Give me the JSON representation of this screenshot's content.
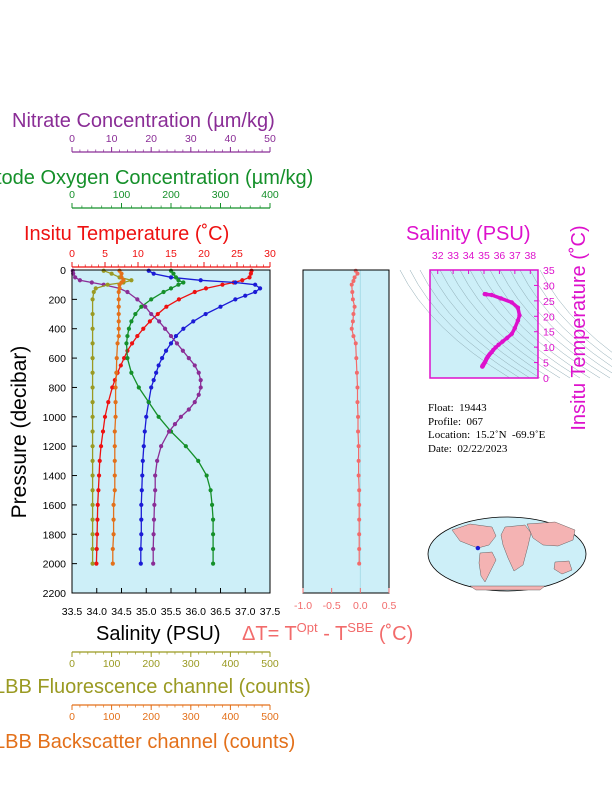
{
  "colors": {
    "nitrate": "#8a2d96",
    "oxygen": "#15902a",
    "temperature": "#ee1111",
    "salinity": "#1b1bd6",
    "fluorescence": "#9a9a22",
    "backscatter": "#e3701a",
    "delta_t": "#f26b6b",
    "ts_salinity": "#dd11cc",
    "panel_bg": "#cdeff8"
  },
  "info": {
    "float": "Float:  19443",
    "profile": "Profile:  067",
    "location": "Location:  15.2˚N  -69.9˚E",
    "date": "Date:  02/22/2023"
  },
  "chart_data": [
    {
      "type": "line",
      "panel": "profiles",
      "ylabel": "Pressure (decibar)",
      "ylim": [
        2200,
        0
      ],
      "y_ticks": [
        "0",
        "200",
        "400",
        "600",
        "800",
        "1000",
        "1200",
        "1400",
        "1600",
        "1800",
        "2000",
        "2200"
      ],
      "axes": [
        {
          "name": "salinity",
          "label": "Salinity (PSU)",
          "range": [
            33.5,
            37.5
          ],
          "ticks": [
            "33.5",
            "34.0",
            "34.5",
            "35.0",
            "35.5",
            "36.0",
            "36.5",
            "37.0",
            "37.5"
          ],
          "position": "bottom"
        },
        {
          "name": "temperature",
          "label": "Insitu Temperature (˚C)",
          "range": [
            0,
            30
          ],
          "ticks": [
            "0",
            "5",
            "10",
            "15",
            "20",
            "25",
            "30"
          ],
          "position": "top"
        },
        {
          "name": "oxygen",
          "label": "tode Oxygen Concentration (µm/kg)",
          "range": [
            0,
            400
          ],
          "ticks": [
            "0",
            "100",
            "200",
            "300",
            "400"
          ],
          "position": "top"
        },
        {
          "name": "nitrate",
          "label": "Nitrate Concentration (µm/kg)",
          "range": [
            0,
            50
          ],
          "ticks": [
            "0",
            "10",
            "20",
            "30",
            "40",
            "50"
          ],
          "position": "top"
        },
        {
          "name": "fluorescence",
          "label": "LBB Fluorescence channel (counts)",
          "range": [
            0,
            500
          ],
          "ticks": [
            "0",
            "100",
            "200",
            "300",
            "400",
            "500"
          ],
          "position": "bottom"
        },
        {
          "name": "backscatter",
          "label": "LBB Backscatter channel (counts)",
          "range": [
            0,
            500
          ],
          "ticks": [
            "0",
            "100",
            "200",
            "300",
            "400",
            "500"
          ],
          "position": "bottom"
        }
      ],
      "series": [
        {
          "axis": "temperature",
          "pressure": [
            5,
            25,
            50,
            70,
            85,
            100,
            125,
            150,
            200,
            250,
            300,
            350,
            400,
            450,
            500,
            550,
            600,
            650,
            700,
            750,
            800,
            900,
            1000,
            1100,
            1200,
            1300,
            1400,
            1500,
            1600,
            1700,
            1800,
            1900,
            2000
          ],
          "values": [
            27.2,
            27.1,
            26.9,
            25.8,
            24.5,
            22.8,
            20.3,
            18.6,
            16.2,
            14.3,
            13.0,
            11.8,
            10.8,
            9.9,
            9.1,
            8.4,
            7.9,
            7.4,
            6.9,
            6.5,
            6.1,
            5.5,
            5.0,
            4.7,
            4.4,
            4.2,
            4.1,
            4.0,
            3.9,
            3.85,
            3.8,
            3.75,
            3.7
          ]
        },
        {
          "axis": "salinity",
          "pressure": [
            5,
            25,
            50,
            70,
            85,
            100,
            125,
            150,
            175,
            200,
            250,
            300,
            350,
            400,
            450,
            500,
            550,
            600,
            650,
            700,
            750,
            800,
            900,
            1000,
            1100,
            1200,
            1300,
            1400,
            1500,
            1600,
            1700,
            1800,
            1900,
            2000
          ],
          "values": [
            35.05,
            35.15,
            35.5,
            36.1,
            36.8,
            37.2,
            37.3,
            37.2,
            37.0,
            36.8,
            36.5,
            36.2,
            35.95,
            35.75,
            35.6,
            35.5,
            35.4,
            35.32,
            35.25,
            35.2,
            35.15,
            35.1,
            35.05,
            35.0,
            34.97,
            34.95,
            34.93,
            34.92,
            34.91,
            34.9,
            34.9,
            34.9,
            34.89,
            34.89
          ]
        },
        {
          "axis": "oxygen",
          "pressure": [
            5,
            25,
            50,
            70,
            85,
            100,
            125,
            150,
            200,
            250,
            300,
            350,
            400,
            450,
            500,
            600,
            700,
            800,
            900,
            1000,
            1100,
            1200,
            1300,
            1400,
            1500,
            1600,
            1700,
            1800,
            1900,
            2000
          ],
          "values": [
            200,
            205,
            210,
            215,
            225,
            215,
            200,
            185,
            160,
            140,
            128,
            120,
            115,
            112,
            110,
            112,
            120,
            135,
            155,
            175,
            200,
            230,
            255,
            272,
            280,
            283,
            285,
            285,
            285,
            285
          ]
        },
        {
          "axis": "nitrate",
          "pressure": [
            5,
            25,
            50,
            70,
            85,
            100,
            125,
            150,
            200,
            250,
            300,
            350,
            400,
            450,
            500,
            550,
            600,
            650,
            700,
            750,
            800,
            850,
            900,
            950,
            1000,
            1050,
            1100,
            1200,
            1300,
            1400,
            1500,
            1600,
            1700,
            1800,
            1900,
            2000
          ],
          "values": [
            0.2,
            0.3,
            0.8,
            2.0,
            5.0,
            8.0,
            12.0,
            14.0,
            16.5,
            18.5,
            20.0,
            22.0,
            23.5,
            25.0,
            26.5,
            28.0,
            29.5,
            31.0,
            32.0,
            32.5,
            32.5,
            32.0,
            31.0,
            29.5,
            27.5,
            26.0,
            24.5,
            22.5,
            21.5,
            21.0,
            21.0,
            20.8,
            20.7,
            20.6,
            20.5,
            20.5
          ]
        },
        {
          "axis": "fluorescence",
          "pressure": [
            5,
            25,
            50,
            70,
            85,
            100,
            125,
            150,
            200,
            300,
            400,
            500,
            600,
            700,
            800,
            900,
            1000,
            1100,
            1200,
            1300,
            1400,
            1500,
            1600,
            1700,
            1800,
            1900,
            2000
          ],
          "values": [
            80,
            100,
            120,
            150,
            130,
            90,
            60,
            55,
            52,
            52,
            52,
            52,
            52,
            52,
            52,
            52,
            52,
            52,
            52,
            52,
            52,
            52,
            52,
            52,
            52,
            52,
            52
          ]
        },
        {
          "axis": "backscatter",
          "pressure": [
            5,
            25,
            50,
            70,
            85,
            100,
            125,
            150,
            200,
            250,
            300,
            350,
            400,
            450,
            500,
            600,
            700,
            800,
            900,
            1000,
            1100,
            1200,
            1300,
            1400,
            1500,
            1600,
            1700,
            1800,
            1900,
            2000
          ],
          "values": [
            120,
            125,
            125,
            130,
            125,
            120,
            120,
            118,
            118,
            118,
            118,
            118,
            118,
            118,
            115,
            113,
            112,
            110,
            110,
            110,
            108,
            108,
            108,
            108,
            108,
            105,
            105,
            105,
            103,
            103
          ]
        }
      ]
    },
    {
      "type": "line",
      "panel": "delta_t",
      "xlabel": "ΔT= T^Opt - T^SBE (˚C)",
      "xlim": [
        -1.0,
        0.5
      ],
      "x_ticks": [
        "-1.0",
        "-0.5",
        "0.0",
        "0.5"
      ],
      "ylim": [
        2200,
        0
      ],
      "series": [
        {
          "name": "delta_t",
          "pressure": [
            5,
            25,
            50,
            75,
            100,
            150,
            200,
            250,
            300,
            350,
            400,
            450,
            500,
            600,
            700,
            800,
            900,
            1000,
            1100,
            1200,
            1300,
            1400,
            1500,
            1600,
            1700,
            1800,
            1900,
            2000
          ],
          "values": [
            -0.08,
            -0.05,
            -0.1,
            -0.12,
            -0.15,
            -0.14,
            -0.13,
            -0.1,
            -0.12,
            -0.13,
            -0.15,
            -0.12,
            -0.08,
            -0.07,
            -0.06,
            -0.05,
            -0.05,
            -0.04,
            -0.04,
            -0.03,
            -0.03,
            -0.03,
            -0.02,
            -0.02,
            -0.02,
            -0.02,
            -0.02,
            -0.02
          ]
        }
      ]
    },
    {
      "type": "scatter",
      "panel": "ts_diagram",
      "xlabel": "Salinity (PSU)",
      "ylabel": "Insitu Temperature (˚C)",
      "xlim": [
        31.5,
        38.5
      ],
      "ylim": [
        0,
        35
      ],
      "x_ticks": [
        "32",
        "33",
        "34",
        "35",
        "36",
        "37",
        "38"
      ],
      "y_ticks": [
        "0",
        "5",
        "10",
        "15",
        "20",
        "25",
        "30",
        "35"
      ],
      "series": [
        {
          "name": "ts",
          "salinity": [
            35.05,
            35.15,
            35.5,
            36.1,
            36.8,
            37.2,
            37.3,
            37.2,
            37.0,
            36.8,
            36.5,
            36.2,
            35.95,
            35.75,
            35.6,
            35.5,
            35.4,
            35.32,
            35.25,
            35.2,
            35.15,
            35.1,
            35.05,
            35.0,
            34.97,
            34.95,
            34.93,
            34.92,
            34.91,
            34.9,
            34.9,
            34.9,
            34.89
          ],
          "temperature": [
            27.2,
            27.1,
            26.9,
            25.8,
            24.5,
            22.8,
            20.3,
            18.6,
            16.2,
            14.3,
            13.0,
            11.8,
            10.8,
            9.9,
            9.1,
            8.4,
            7.9,
            7.4,
            6.9,
            6.5,
            6.1,
            5.5,
            5.0,
            4.7,
            4.4,
            4.2,
            4.1,
            4.0,
            3.9,
            3.85,
            3.8,
            3.75,
            3.7
          ]
        }
      ],
      "marker_position": {
        "lon": -69.9,
        "lat": 15.2
      }
    }
  ]
}
